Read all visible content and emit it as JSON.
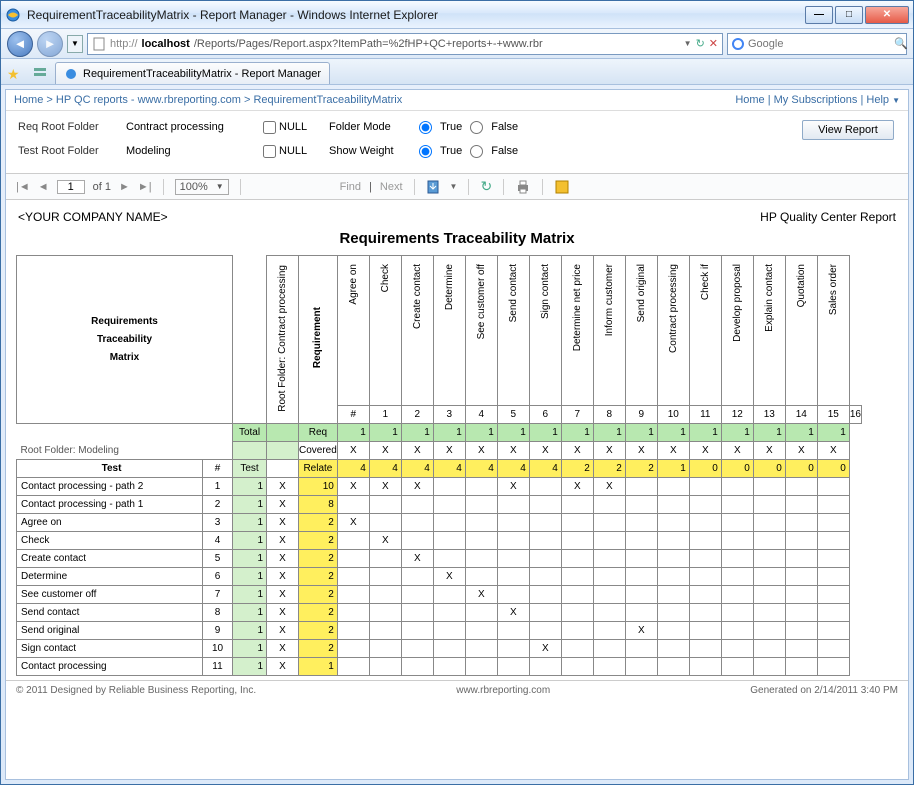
{
  "window": {
    "title": "RequirementTraceabilityMatrix - Report Manager - Windows Internet Explorer"
  },
  "nav": {
    "url_prefix": "http://",
    "url_host": "localhost",
    "url_path": "/Reports/Pages/Report.aspx?ItemPath=%2fHP+QC+reports+-+www.rbr",
    "search_placeholder": "Google"
  },
  "tab": {
    "label": "RequirementTraceabilityMatrix - Report Manager"
  },
  "breadcrumb": {
    "left": [
      "Home",
      "HP QC reports - www.rbreporting.com",
      "RequirementTraceabilityMatrix"
    ],
    "right": [
      "Home",
      "My Subscriptions",
      "Help"
    ]
  },
  "params": {
    "req_root_label": "Req Root Folder",
    "req_root_value": "Contract processing",
    "test_root_label": "Test Root Folder",
    "test_root_value": "Modeling",
    "null_label": "NULL",
    "folder_mode_label": "Folder Mode",
    "show_weight_label": "Show Weight",
    "true_label": "True",
    "false_label": "False",
    "view_report": "View Report"
  },
  "toolbar": {
    "page_current": "1",
    "page_of": "of 1",
    "zoom": "100%",
    "find_label": "Find",
    "next_label": "Next"
  },
  "report": {
    "company": "<YOUR COMPANY NAME>",
    "right_header": "HP Quality Center Report",
    "title": "Requirements Traceability Matrix",
    "corner_lines": [
      "Requirements",
      "Traceability",
      "Matrix"
    ],
    "root_col_label": "Root Folder: Contract processing",
    "requirement_label": "Requirement",
    "col_headers": [
      "Agree on",
      "Check",
      "Create contact",
      "Determine",
      "See customer off",
      "Send contact",
      "Sign contact",
      "Determine net price",
      "Inform customer",
      "Send original",
      "Contract processing",
      "Check if",
      "Develop proposal",
      "Explain contact",
      "Quotation",
      "Sales order"
    ],
    "col_nums": [
      "#",
      "1",
      "2",
      "3",
      "4",
      "5",
      "6",
      "7",
      "8",
      "9",
      "10",
      "11",
      "12",
      "13",
      "14",
      "15",
      "16"
    ],
    "total_label": "Total",
    "req_row_label": "Req",
    "req_row": [
      1,
      1,
      1,
      1,
      1,
      1,
      1,
      1,
      1,
      1,
      1,
      1,
      1,
      1,
      1,
      1
    ],
    "covered_root": "Root Folder: Modeling",
    "covered_label": "Covered",
    "covered_row": [
      "X",
      "X",
      "X",
      "X",
      "X",
      "X",
      "X",
      "X",
      "X",
      "X",
      "X",
      "X",
      "X",
      "X",
      "X",
      "X"
    ],
    "test_label": "Test",
    "hash": "#",
    "relate_label": "Relate",
    "relate_row": [
      4,
      4,
      4,
      4,
      4,
      4,
      4,
      2,
      2,
      2,
      1,
      0,
      0,
      0,
      0,
      0
    ],
    "rows": [
      {
        "name": "Contact processing - path 2",
        "num": 1,
        "test": 1,
        "cov": "X",
        "rel": 10,
        "marks": [
          1,
          1,
          1,
          0,
          0,
          1,
          0,
          1,
          1,
          0,
          0,
          0,
          0,
          0,
          0,
          0
        ]
      },
      {
        "name": "Contact processing - path 1",
        "num": 2,
        "test": 1,
        "cov": "X",
        "rel": 8,
        "marks": [
          0,
          0,
          0,
          0,
          0,
          0,
          0,
          0,
          0,
          0,
          0,
          0,
          0,
          0,
          0,
          0
        ]
      },
      {
        "name": "Agree on",
        "num": 3,
        "test": 1,
        "cov": "X",
        "rel": 2,
        "marks": [
          1,
          0,
          0,
          0,
          0,
          0,
          0,
          0,
          0,
          0,
          0,
          0,
          0,
          0,
          0,
          0
        ]
      },
      {
        "name": "Check",
        "num": 4,
        "test": 1,
        "cov": "X",
        "rel": 2,
        "marks": [
          0,
          1,
          0,
          0,
          0,
          0,
          0,
          0,
          0,
          0,
          0,
          0,
          0,
          0,
          0,
          0
        ]
      },
      {
        "name": "Create contact",
        "num": 5,
        "test": 1,
        "cov": "X",
        "rel": 2,
        "marks": [
          0,
          0,
          1,
          0,
          0,
          0,
          0,
          0,
          0,
          0,
          0,
          0,
          0,
          0,
          0,
          0
        ]
      },
      {
        "name": "Determine",
        "num": 6,
        "test": 1,
        "cov": "X",
        "rel": 2,
        "marks": [
          0,
          0,
          0,
          1,
          0,
          0,
          0,
          0,
          0,
          0,
          0,
          0,
          0,
          0,
          0,
          0
        ]
      },
      {
        "name": "See customer off",
        "num": 7,
        "test": 1,
        "cov": "X",
        "rel": 2,
        "marks": [
          0,
          0,
          0,
          0,
          1,
          0,
          0,
          0,
          0,
          0,
          0,
          0,
          0,
          0,
          0,
          0
        ]
      },
      {
        "name": "Send contact",
        "num": 8,
        "test": 1,
        "cov": "X",
        "rel": 2,
        "marks": [
          0,
          0,
          0,
          0,
          0,
          1,
          0,
          0,
          0,
          0,
          0,
          0,
          0,
          0,
          0,
          0
        ]
      },
      {
        "name": "Send original",
        "num": 9,
        "test": 1,
        "cov": "X",
        "rel": 2,
        "marks": [
          0,
          0,
          0,
          0,
          0,
          0,
          0,
          0,
          0,
          1,
          0,
          0,
          0,
          0,
          0,
          0
        ]
      },
      {
        "name": "Sign contact",
        "num": 10,
        "test": 1,
        "cov": "X",
        "rel": 2,
        "marks": [
          0,
          0,
          0,
          0,
          0,
          0,
          1,
          0,
          0,
          0,
          0,
          0,
          0,
          0,
          0,
          0
        ]
      },
      {
        "name": "Contact processing",
        "num": 11,
        "test": 1,
        "cov": "X",
        "rel": 1,
        "marks": [
          0,
          0,
          0,
          0,
          0,
          0,
          0,
          0,
          0,
          0,
          0,
          0,
          0,
          0,
          0,
          0
        ]
      }
    ],
    "colors": {
      "green": "#b8e8b0",
      "yellow": "#ffef5e",
      "lgreen": "#d4f0cc"
    }
  },
  "footer": {
    "left": "© 2011 Designed by Reliable Business Reporting, Inc.",
    "center": "www.rbreporting.com",
    "right": "Generated on 2/14/2011 3:40 PM"
  }
}
